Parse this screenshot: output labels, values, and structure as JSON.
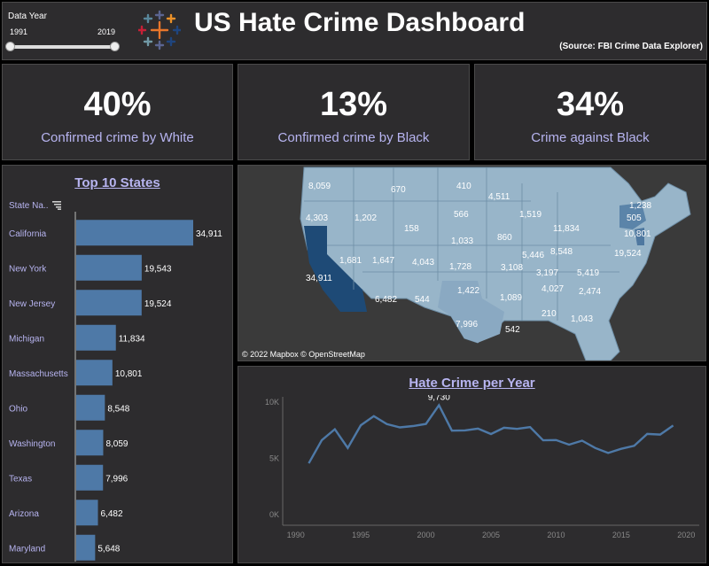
{
  "header": {
    "filter_label": "Data Year",
    "year_min": "1991",
    "year_max": "2019",
    "title": "US Hate Crime Dashboard",
    "source": "(Source: FBI Crime Data Explorer)"
  },
  "kpis": [
    {
      "value": "40%",
      "label": "Confirmed crime by White"
    },
    {
      "value": "13%",
      "label": "Confirmed crime by Black"
    },
    {
      "value": "34%",
      "label": "Crime against Black"
    }
  ],
  "top_states": {
    "title": "Top 10 States",
    "axis_label": "State Na..",
    "filter_icon": "filter-icon"
  },
  "map": {
    "attribution": "© 2022 Mapbox  © OpenStreetMap",
    "values": [
      "8,059",
      "670",
      "410",
      "4,511",
      "1,238",
      "4,303",
      "1,202",
      "566",
      "1,519",
      "505",
      "158",
      "11,834",
      "1,033",
      "860",
      "10,801",
      "5,446",
      "8,548",
      "19,524",
      "1,681",
      "1,647",
      "4,043",
      "1,728",
      "3,108",
      "3,197",
      "5,419",
      "34,911",
      "4,027",
      "6,482",
      "544",
      "1,422",
      "1,089",
      "2,474",
      "7,996",
      "210",
      "1,043",
      "542"
    ]
  },
  "line_chart": {
    "title": "Hate Crime per Year",
    "peak_label": "9,730"
  },
  "chart_data": [
    {
      "type": "bar",
      "title": "Top 10 States",
      "ylabel": "State Na..",
      "categories": [
        "California",
        "New York",
        "New Jersey",
        "Michigan",
        "Massachusetts",
        "Ohio",
        "Washington",
        "Texas",
        "Arizona",
        "Maryland"
      ],
      "values": [
        34911,
        19543,
        19524,
        11834,
        10801,
        8548,
        8059,
        7996,
        6482,
        5648
      ],
      "value_labels": [
        "34,911",
        "19,543",
        "19,524",
        "11,834",
        "10,801",
        "8,548",
        "8,059",
        "7,996",
        "6,482",
        "5,648"
      ],
      "color": "#4e79a7"
    },
    {
      "type": "line",
      "title": "Hate Crime per Year",
      "x": [
        1991,
        1992,
        1993,
        1994,
        1995,
        1996,
        1997,
        1998,
        1999,
        2000,
        2001,
        2002,
        2003,
        2004,
        2005,
        2006,
        2007,
        2008,
        2009,
        2010,
        2011,
        2012,
        2013,
        2014,
        2015,
        2016,
        2017,
        2018,
        2019
      ],
      "y": [
        4558,
        6623,
        7587,
        5932,
        7947,
        8759,
        8049,
        7755,
        7876,
        8063,
        9730,
        7462,
        7489,
        7649,
        7163,
        7722,
        7624,
        7783,
        6604,
        6628,
        6222,
        6573,
        5928,
        5479,
        5850,
        6121,
        7175,
        7120,
        7918
      ],
      "xticks": [
        "1990",
        "1995",
        "2000",
        "2005",
        "2010",
        "2015",
        "2020"
      ],
      "yticks": [
        "0K",
        "5K",
        "10K"
      ],
      "ylim": [
        0,
        10000
      ],
      "xlim": [
        1989,
        2021
      ],
      "color": "#4e79a7"
    }
  ]
}
